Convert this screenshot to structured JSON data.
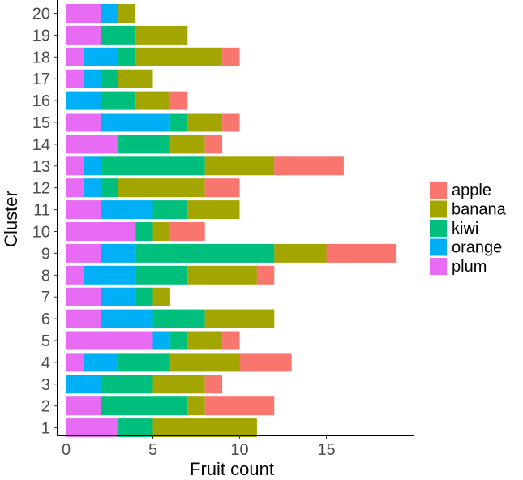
{
  "chart_data": {
    "type": "bar",
    "orientation": "horizontal",
    "stacked": true,
    "xlabel": "Fruit count",
    "ylabel": "Cluster",
    "xlim": [
      0,
      19
    ],
    "xticks": [
      0,
      5,
      10,
      15
    ],
    "grid": false,
    "legend_position": "right",
    "categories": [
      "1",
      "2",
      "3",
      "4",
      "5",
      "6",
      "7",
      "8",
      "9",
      "10",
      "11",
      "12",
      "13",
      "14",
      "15",
      "16",
      "17",
      "18",
      "19",
      "20"
    ],
    "stack_order": [
      "plum",
      "orange",
      "kiwi",
      "banana",
      "apple"
    ],
    "series": [
      {
        "name": "apple",
        "color": "#F8766D",
        "values": [
          0,
          4,
          1,
          3,
          1,
          0,
          0,
          1,
          4,
          2,
          0,
          2,
          4,
          1,
          1,
          1,
          0,
          1,
          0,
          0
        ]
      },
      {
        "name": "banana",
        "color": "#A3A500",
        "values": [
          6,
          1,
          3,
          4,
          2,
          4,
          1,
          4,
          3,
          1,
          3,
          5,
          4,
          2,
          2,
          2,
          2,
          5,
          3,
          1
        ]
      },
      {
        "name": "kiwi",
        "color": "#00BF7D",
        "values": [
          2,
          5,
          3,
          3,
          1,
          3,
          1,
          3,
          8,
          1,
          2,
          1,
          6,
          3,
          1,
          2,
          1,
          1,
          2,
          0
        ]
      },
      {
        "name": "orange",
        "color": "#00B0F6",
        "values": [
          0,
          0,
          2,
          2,
          1,
          3,
          2,
          3,
          2,
          0,
          3,
          1,
          1,
          0,
          4,
          2,
          1,
          2,
          0,
          1
        ]
      },
      {
        "name": "plum",
        "color": "#E76BF3",
        "values": [
          3,
          2,
          0,
          1,
          5,
          2,
          2,
          1,
          2,
          4,
          2,
          1,
          1,
          3,
          2,
          0,
          1,
          1,
          2,
          2
        ]
      }
    ]
  }
}
